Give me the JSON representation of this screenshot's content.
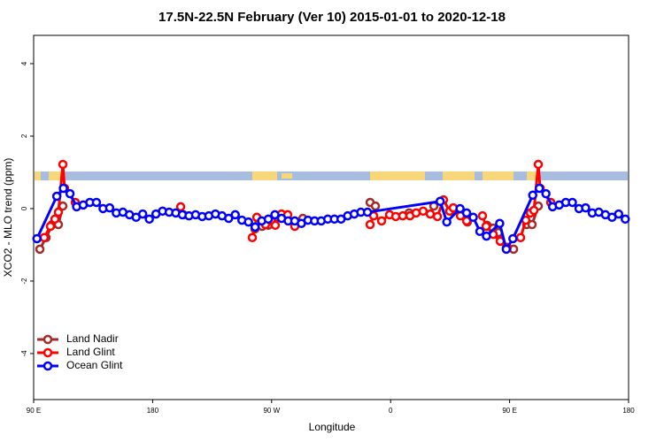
{
  "chart_data": {
    "type": "line",
    "title": "17.5N-22.5N February (Ver 10)   2015-01-01 to 2020-12-18",
    "x_label": "Longitude",
    "y_label": "XCO2 - MLO trend (ppm)",
    "xlim": [
      90,
      540
    ],
    "ylim": [
      -5.27,
      4.78
    ],
    "xticks": [
      {
        "value": 90,
        "label": "90 E"
      },
      180,
      {
        "value": 270,
        "label": "90 W"
      },
      {
        "value": 360,
        "label": "0"
      },
      {
        "value": 450,
        "label": "90 E"
      },
      {
        "value": 540,
        "label": "180"
      }
    ],
    "yticks": [
      -4,
      -2,
      0,
      2,
      4
    ],
    "grid": false,
    "legend": "bottomleft",
    "series": [
      {
        "name": "Land Nadir",
        "color": "#a52a2a",
        "x": [
          94.7,
          99.4,
          104.1,
          108.7,
          112.1,
          null,
          203.2,
          null,
          257.4,
          262.8,
          267.5,
          272.1,
          null,
          288.2,
          293.6,
          null,
          344.5,
          348.5,
          null,
          374,
          null,
          392.7,
          null,
          406.7,
          null,
          418.1,
          null,
          432.9,
          437.6,
          441.6,
          447.6,
          453,
          null,
          463,
          467,
          471.7
        ],
        "values": [
          -1.12,
          -0.8,
          -0.44,
          -0.44,
          0.07,
          null,
          -0.17,
          null,
          -0.56,
          -0.49,
          -0.46,
          -0.41,
          null,
          -0.44,
          -0.27,
          null,
          0.17,
          0.07,
          null,
          -0.12,
          null,
          0.07,
          null,
          -0.07,
          null,
          -0.37,
          null,
          -0.46,
          -0.54,
          -0.66,
          -1.07,
          -1.12,
          null,
          -0.44,
          -0.44,
          0.07
        ]
      },
      {
        "name": "Land Glint",
        "color": "#ff0000",
        "x": [
          98,
          102.7,
          106.1,
          108.7,
          112.1,
          113.4,
          121.5,
          null,
          201.2,
          null,
          255.4,
          258.8,
          null,
          265.4,
          269.5,
          272.8,
          277.5,
          282.2,
          287.5,
          null,
          344.5,
          347.2,
          353.2,
          359.2,
          363.9,
          369.2,
          374.6,
          379.3,
          384.6,
          390,
          395.4,
          400,
          404.7,
          407.4,
          412.8,
          417.5,
          null,
          429.5,
          432.2,
          437.6,
          442.9,
          448.3,
          null,
          458.3,
          462.3,
          465.7,
          468.4,
          471.7,
          473.1,
          481.1
        ],
        "values": [
          -0.8,
          -0.49,
          -0.29,
          -0.1,
          1.22,
          0.56,
          0.17,
          null,
          0.05,
          null,
          -0.8,
          -0.24,
          null,
          -0.44,
          -0.32,
          -0.46,
          -0.15,
          -0.17,
          -0.49,
          null,
          -0.44,
          -0.2,
          -0.34,
          -0.17,
          -0.22,
          -0.2,
          -0.2,
          -0.12,
          -0.07,
          -0.15,
          -0.22,
          0.24,
          -0.07,
          0.02,
          -0.2,
          -0.34,
          null,
          -0.2,
          -0.49,
          -0.71,
          -0.9,
          -1.07,
          null,
          -0.8,
          -0.32,
          -0.12,
          -0.05,
          1.22,
          0.56,
          0.17
        ]
      },
      {
        "name": "Ocean Glint",
        "color": "#0000ff",
        "x": [
          92.5,
          107.5,
          112.5,
          117.5,
          122.5,
          127.5,
          132.5,
          137.5,
          142.5,
          147.5,
          152.5,
          157.5,
          162.5,
          167.5,
          172.5,
          177.5,
          182.5,
          187.5,
          192.5,
          197.5,
          202.5,
          207.5,
          212.5,
          217.5,
          222.5,
          227.5,
          232.5,
          237.5,
          242.5,
          247.5,
          252.5,
          257.5,
          262.5,
          267.5,
          272.5,
          277.5,
          282.5,
          287.5,
          292.5,
          297.5,
          302.5,
          307.5,
          312.5,
          317.5,
          322.5,
          327.5,
          332.5,
          337.5,
          342.5,
          397.5,
          402.5,
          412.5,
          417.5,
          422.5,
          427.5,
          432.5,
          442.5,
          447.5,
          452.5,
          467.5,
          472.5,
          477.5,
          482.5,
          487.5,
          492.5,
          497.5,
          502.5,
          507.5,
          512.5,
          517.5,
          522.5,
          527.5,
          532.5,
          537.5
        ],
        "values": [
          -0.83,
          0.34,
          0.56,
          0.41,
          0.05,
          0.1,
          0.17,
          0.17,
          0,
          0.02,
          -0.12,
          -0.1,
          -0.17,
          -0.24,
          -0.15,
          -0.29,
          -0.15,
          -0.07,
          -0.1,
          -0.12,
          -0.17,
          -0.2,
          -0.17,
          -0.22,
          -0.2,
          -0.15,
          -0.2,
          -0.27,
          -0.17,
          -0.32,
          -0.37,
          -0.51,
          -0.34,
          -0.29,
          -0.17,
          -0.27,
          -0.34,
          -0.34,
          -0.41,
          -0.32,
          -0.34,
          -0.34,
          -0.29,
          -0.29,
          -0.29,
          -0.2,
          -0.15,
          -0.1,
          -0.1,
          0.2,
          -0.37,
          0,
          -0.12,
          -0.24,
          -0.63,
          -0.76,
          -0.41,
          -1.12,
          -0.83,
          0.37,
          0.56,
          0.41,
          0.05,
          0.1,
          0.17,
          0.17,
          0,
          0.02,
          -0.12,
          -0.1,
          -0.17,
          -0.24,
          -0.15,
          -0.29
        ]
      }
    ]
  }
}
